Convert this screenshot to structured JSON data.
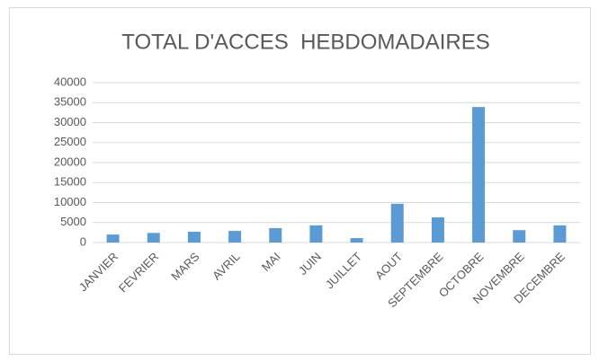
{
  "chart_data": {
    "type": "bar",
    "title": "TOTAL D'ACCES  HEBDOMADAIRES",
    "categories": [
      "JANVIER",
      "FEVRIER",
      "MARS",
      "AVRIL",
      "MAI",
      "JUIN",
      "JUILLET",
      "AOUT",
      "SEPTEMBRE",
      "OCTOBRE",
      "NOVEMBRE",
      "DECEMBRE"
    ],
    "values": [
      2000,
      2400,
      2700,
      2900,
      3600,
      4300,
      1100,
      9700,
      6300,
      33900,
      3100,
      4300
    ],
    "color": "#5b9bd5",
    "ylim": [
      0,
      40000
    ],
    "yticks": [
      0,
      5000,
      10000,
      15000,
      20000,
      25000,
      30000,
      35000,
      40000
    ],
    "grid": true
  }
}
